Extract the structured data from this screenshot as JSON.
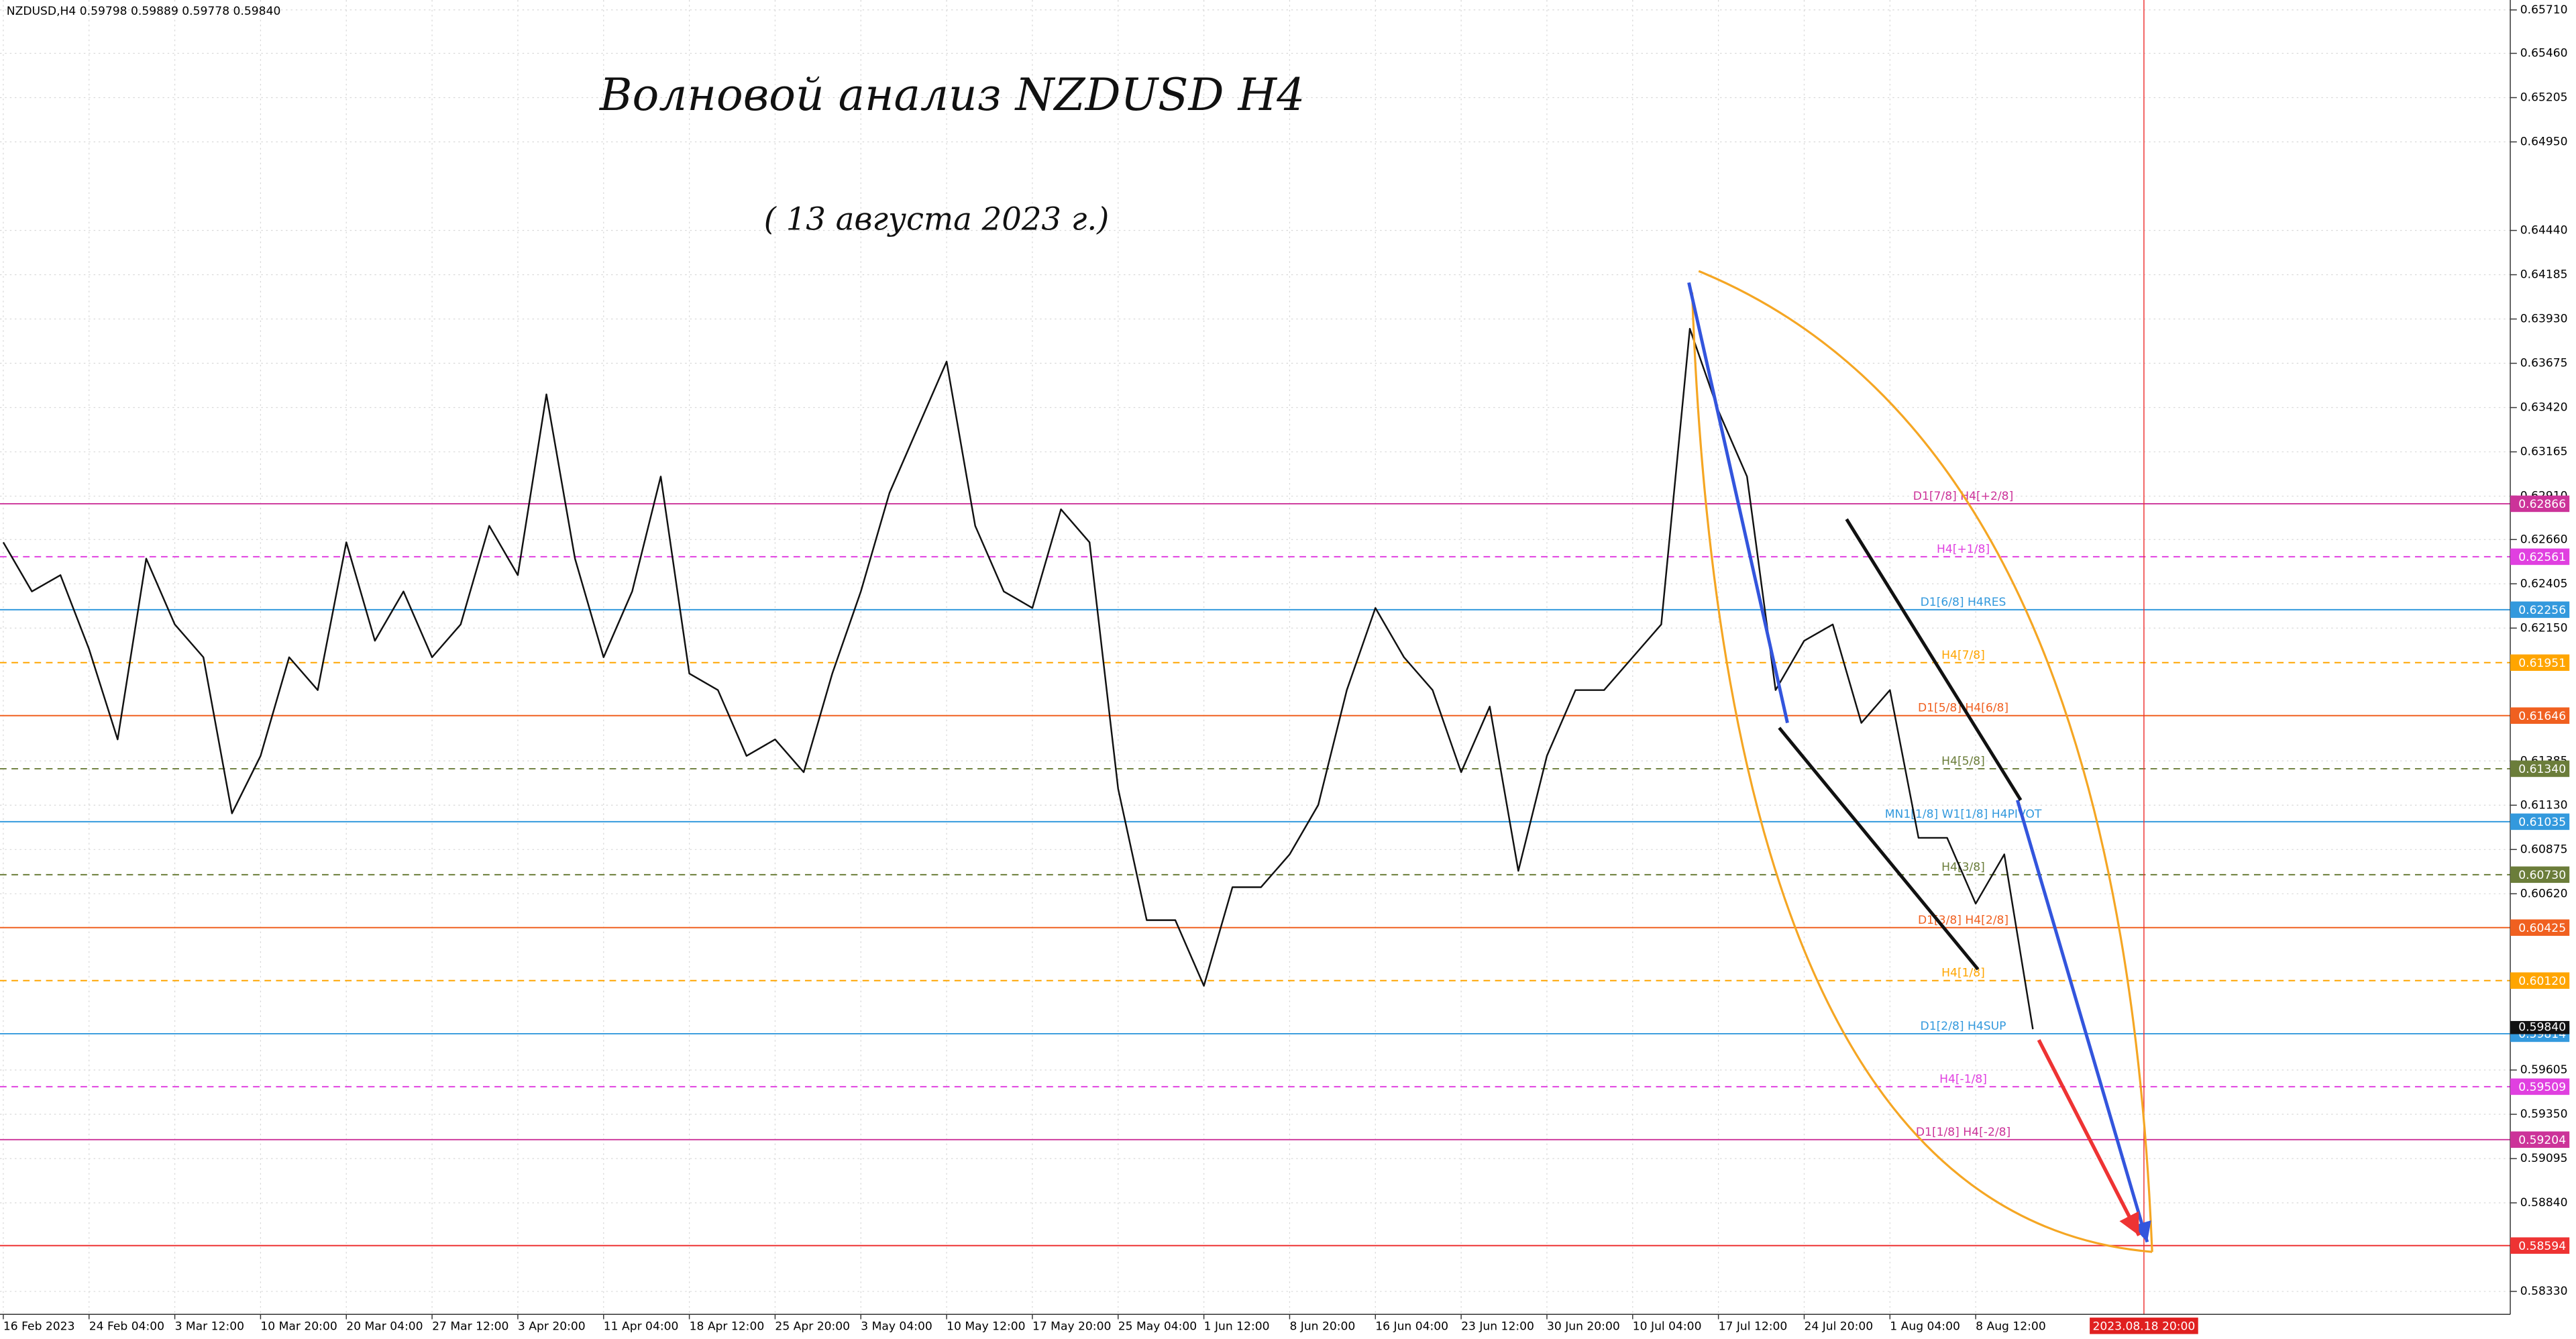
{
  "header": "NZDUSD,H4  0.59798 0.59889 0.59778 0.59840",
  "chart_data": {
    "type": "line",
    "title": "Волновой анализ NZDUSD H4",
    "subtitle": "( 13 августа 2023 г.)",
    "categories": [
      "16 Feb 2023",
      null,
      null,
      "24 Feb 04:00",
      null,
      null,
      "3 Mar 12:00",
      null,
      null,
      "10 Mar 20:00",
      null,
      null,
      "20 Mar 04:00",
      null,
      null,
      "27 Mar 12:00",
      null,
      null,
      "3 Apr 20:00",
      null,
      null,
      "11 Apr 04:00",
      null,
      null,
      "18 Apr 12:00",
      null,
      null,
      "25 Apr 20:00",
      null,
      null,
      "3 May 04:00",
      null,
      null,
      "10 May 12:00",
      null,
      null,
      "17 May 20:00",
      null,
      null,
      "25 May 04:00",
      null,
      null,
      "1 Jun 12:00",
      null,
      null,
      "8 Jun 20:00",
      null,
      null,
      "16 Jun 04:00",
      null,
      null,
      "23 Jun 12:00",
      null,
      null,
      "30 Jun 20:00",
      null,
      null,
      "10 Jul 04:00",
      null,
      null,
      "17 Jul 12:00",
      null,
      null,
      "24 Jul 20:00",
      null,
      null,
      "1 Aug 04:00",
      null,
      null,
      "8 Aug 12:00",
      null,
      null
    ],
    "series": [
      {
        "name": "NZDUSD",
        "color": "#111111",
        "values": [
          0.62644,
          0.62361,
          0.62455,
          0.62029,
          0.61509,
          0.6255,
          0.62171,
          0.61982,
          0.61083,
          0.61414,
          0.61982,
          0.61793,
          0.62644,
          0.62077,
          0.62361,
          0.61982,
          0.62171,
          0.62739,
          0.62455,
          0.63496,
          0.6255,
          0.61982,
          0.62361,
          0.63023,
          0.61888,
          0.61793,
          0.61414,
          0.61509,
          0.6132,
          0.61888,
          0.62361,
          0.62928,
          0.63307,
          0.63685,
          0.62739,
          0.62361,
          0.62266,
          0.62834,
          0.62644,
          0.61225,
          0.60468,
          0.60468,
          0.6009,
          0.60658,
          0.60658,
          0.60847,
          0.61131,
          0.61793,
          0.62266,
          0.61982,
          0.61793,
          0.6132,
          0.61698,
          0.60752,
          0.61414,
          0.61793,
          0.61793,
          0.61982,
          0.62171,
          0.63874,
          0.63401,
          0.63023,
          0.61793,
          0.62077,
          0.62171,
          0.61604,
          0.61793,
          0.60942,
          0.60942,
          0.60563,
          0.60847,
          0.5984
        ]
      }
    ],
    "ylim": [
      0.58198,
      0.65767
    ],
    "yticks": [
      {
        "value": 0.6571,
        "label": "0.65710"
      },
      {
        "value": 0.6546,
        "label": "0.65460"
      },
      0.65205,
      {
        "value": 0.6495,
        "label": "0.64950"
      },
      {
        "value": 0.6444,
        "label": "0.64440"
      },
      0.64185,
      {
        "value": 0.6393,
        "label": "0.63930"
      },
      0.63675,
      {
        "value": 0.6342,
        "label": "0.63420"
      },
      0.63165,
      {
        "value": 0.6291,
        "label": "0.62910"
      },
      {
        "value": 0.6266,
        "label": "0.62660"
      },
      0.62405,
      {
        "value": 0.6215,
        "label": "0.62150"
      },
      0.61385,
      {
        "value": 0.6113,
        "label": "0.61130"
      },
      0.60875,
      {
        "value": 0.6062,
        "label": "0.60620"
      },
      0.59605,
      {
        "value": 0.5935,
        "label": "0.59350"
      },
      0.59095,
      {
        "value": 0.5884,
        "label": "0.58840"
      },
      {
        "value": 0.5833,
        "label": "0.58330"
      }
    ],
    "grid": true,
    "last_price": {
      "value": 0.5984,
      "label": "0.59840"
    },
    "x_marker": "2023.08.18 20:00",
    "levels": [
      {
        "price": 0.62866,
        "name": "D1[7/8] H4[+2/8]",
        "color": "#cc3399",
        "style": "solid"
      },
      {
        "price": 0.62561,
        "name": "H4[+1/8]",
        "color": "#e040e0",
        "style": "dashed"
      },
      {
        "price": 0.62256,
        "name": "D1[6/8] H4RES",
        "color": "#3399dd",
        "style": "solid"
      },
      {
        "price": 0.61951,
        "name": "H4[7/8]",
        "color": "#ffa500",
        "style": "dashed"
      },
      {
        "price": 0.61646,
        "name": "D1[5/8] H4[6/8]",
        "color": "#f06020",
        "style": "solid"
      },
      {
        "price": {
          "value": 0.6134,
          "label": "0.61340"
        },
        "name": "H4[5/8]",
        "color": "#6b7d3a",
        "style": "dashed"
      },
      {
        "price": 0.61035,
        "name": "MN1[1/8] W1[1/8] H4PIVOT",
        "color": "#3399dd",
        "style": "solid"
      },
      {
        "price": {
          "value": 0.6073,
          "label": "0.60730"
        },
        "name": "H4[3/8]",
        "color": "#6b7d3a",
        "style": "dashed"
      },
      {
        "price": 0.60425,
        "name": "D1[3/8] H4[2/8]",
        "color": "#f06020",
        "style": "solid"
      },
      {
        "price": {
          "value": 0.6012,
          "label": "0.60120"
        },
        "name": "H4[1/8]",
        "color": "#ffa500",
        "style": "dashed"
      },
      {
        "price": 0.59814,
        "name": "D1[2/8] H4SUP",
        "color": "#3399dd",
        "style": "solid"
      },
      {
        "price": 0.59509,
        "name": "H4[-1/8]",
        "color": "#e040e0",
        "style": "dashed"
      },
      {
        "price": 0.59204,
        "name": "D1[1/8] H4[-2/8]",
        "color": "#cc3399",
        "style": "solid"
      },
      {
        "price": 0.58594,
        "color": "#ee3333",
        "style": "solid"
      }
    ]
  }
}
